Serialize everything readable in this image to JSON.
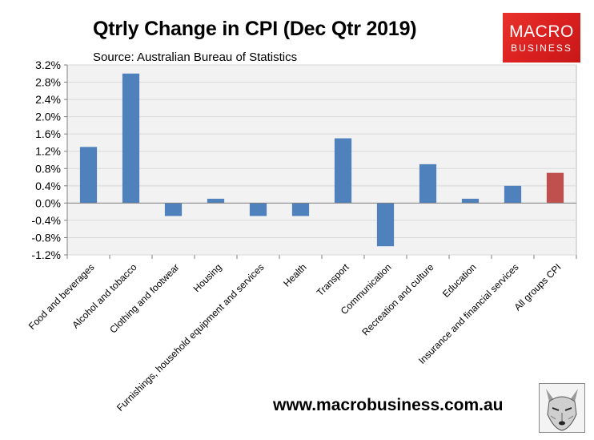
{
  "header": {
    "title": "Qtrly Change in CPI (Dec Qtr 2019)",
    "source": "Source: Australian Bureau of Statistics"
  },
  "logo": {
    "line1": "MACRO",
    "line2": "BUSINESS",
    "color": "#e02a26"
  },
  "footer": {
    "website": "www.macrobusiness.com.au",
    "mascot_icon": "wolf-icon"
  },
  "chart_data": {
    "type": "bar",
    "title": "Qtrly Change in CPI (Dec Qtr 2019)",
    "xlabel": "",
    "ylabel": "",
    "ylim": [
      -1.2,
      3.2
    ],
    "yticks": [
      3.2,
      2.8,
      2.4,
      2.0,
      1.6,
      1.2,
      0.8,
      0.4,
      0.0,
      -0.4,
      -0.8,
      -1.2
    ],
    "ytick_labels": [
      "3.2%",
      "2.8%",
      "2.4%",
      "2.0%",
      "1.6%",
      "1.2%",
      "0.8%",
      "0.4%",
      "0.0%",
      "-0.4%",
      "-0.8%",
      "-1.2%"
    ],
    "grid": true,
    "categories": [
      "Food and beverages",
      "Alcohol and tobacco",
      "Clothing and footwear",
      "Housing",
      "Furnishings, household equipment and services",
      "Health",
      "Transport",
      "Communication",
      "Recreation and culture",
      "Education",
      "Insurance and financial services",
      "All groups CPI"
    ],
    "values": [
      1.3,
      3.0,
      -0.3,
      0.1,
      -0.3,
      -0.3,
      1.5,
      -1.0,
      0.9,
      0.1,
      0.4,
      0.7
    ],
    "colors": [
      "#4f81bd",
      "#4f81bd",
      "#4f81bd",
      "#4f81bd",
      "#4f81bd",
      "#4f81bd",
      "#4f81bd",
      "#4f81bd",
      "#4f81bd",
      "#4f81bd",
      "#4f81bd",
      "#c0504d"
    ],
    "plot_background": "#f2f2f2",
    "grid_color": "#d9d9d9"
  }
}
